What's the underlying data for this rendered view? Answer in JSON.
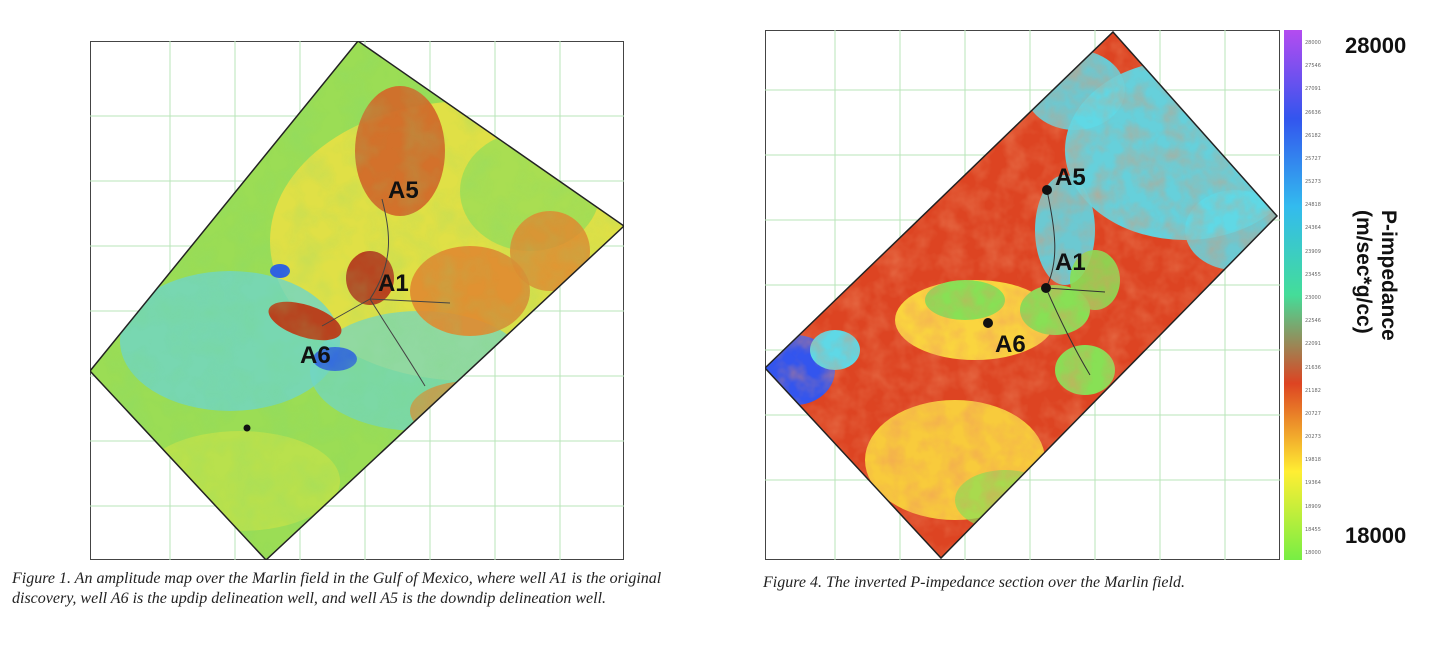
{
  "figure1": {
    "wells": {
      "a5": "A5",
      "a1": "A1",
      "a6": "A6"
    },
    "caption": "Figure 1. An amplitude map over the Marlin field in the Gulf of Mexico, where well A1 is the original discovery, well A6 is the updip delineation well, and well A5 is the downdip delineation well."
  },
  "figure4": {
    "wells": {
      "a5": "A5",
      "a1": "A1",
      "a6": "A6"
    },
    "caption": "Figure 4. The inverted P-impedance section over the Marlin field.",
    "colorbar": {
      "max_label": "28000",
      "min_label": "18000",
      "title_line1": "P-impedance",
      "title_line2": "(m/sec*g/cc)",
      "ticks": [
        "28000",
        "27546",
        "27091",
        "26636",
        "26182",
        "25727",
        "25273",
        "24818",
        "24364",
        "23909",
        "23455",
        "23000",
        "22546",
        "22091",
        "21636",
        "21182",
        "20727",
        "20273",
        "19818",
        "19364",
        "18909",
        "18455",
        "18000"
      ],
      "colors": [
        "#b44cf0",
        "#3355ee",
        "#33bbee",
        "#44dd99",
        "#dd4422",
        "#ffee33",
        "#77ee44"
      ]
    }
  }
}
